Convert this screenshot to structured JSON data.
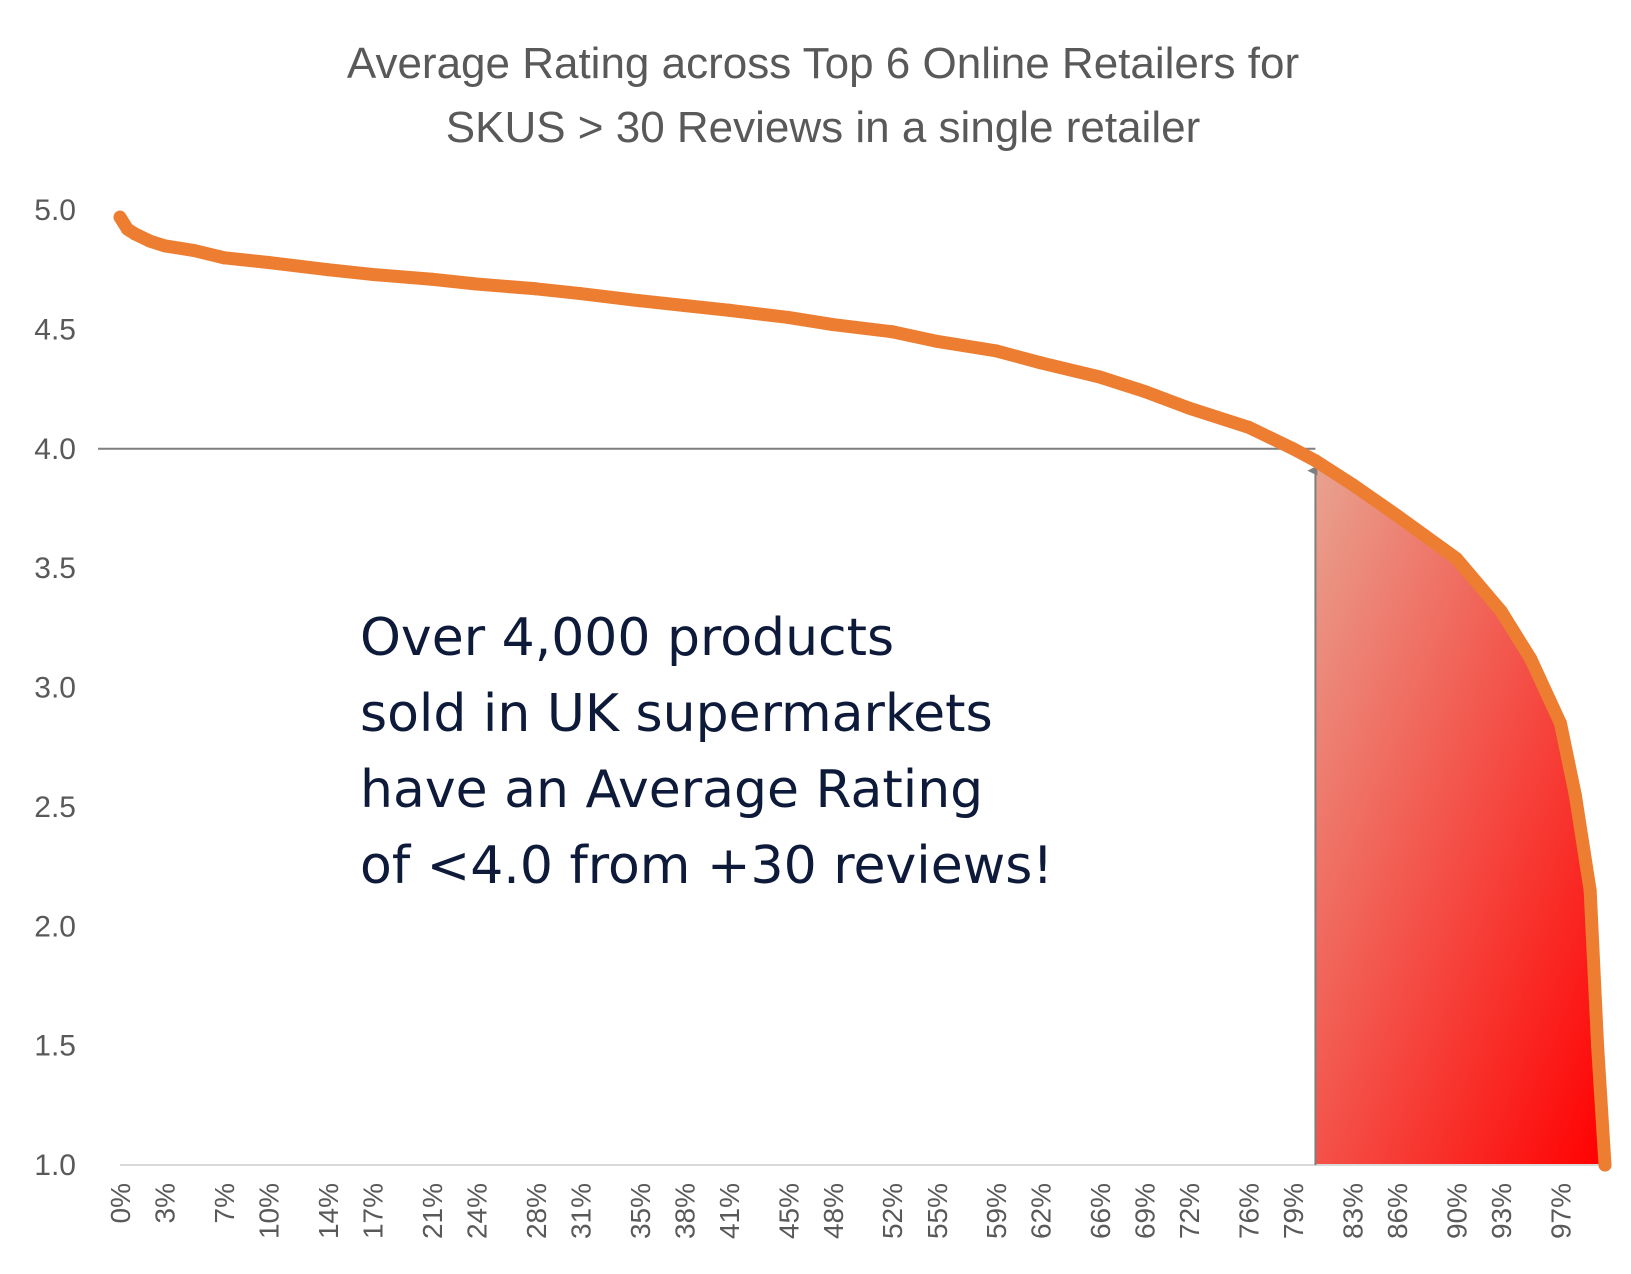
{
  "chart_data": {
    "type": "line",
    "title": [
      "Average Rating across Top 6 Online Retailers for",
      "SKUS > 30 Reviews in a single retailer"
    ],
    "xlabel": "",
    "ylabel": "",
    "ylim": [
      1.0,
      5.0
    ],
    "yticks": [
      "5.0",
      "4.5",
      "4.0",
      "3.5",
      "3.0",
      "2.5",
      "2.0",
      "1.5",
      "1.0"
    ],
    "xticks": [
      "0%",
      "3%",
      "7%",
      "10%",
      "14%",
      "17%",
      "21%",
      "24%",
      "28%",
      "31%",
      "35%",
      "38%",
      "41%",
      "45%",
      "48%",
      "52%",
      "55%",
      "59%",
      "62%",
      "66%",
      "69%",
      "72%",
      "76%",
      "79%",
      "83%",
      "86%",
      "90%",
      "93%",
      "97%"
    ],
    "series": [
      {
        "color": "#ED7D31",
        "x": [
          0,
          0.5,
          1,
          2,
          3,
          5,
          7,
          10,
          14,
          17,
          21,
          24,
          28,
          31,
          35,
          38,
          41,
          45,
          48,
          52,
          55,
          59,
          62,
          66,
          69,
          72,
          76,
          79,
          80.5,
          83,
          86,
          90,
          93,
          95,
          97,
          98,
          99,
          99.5,
          100
        ],
        "values": [
          4.97,
          4.92,
          4.9,
          4.87,
          4.85,
          4.83,
          4.8,
          4.78,
          4.75,
          4.73,
          4.71,
          4.69,
          4.67,
          4.65,
          4.62,
          4.6,
          4.58,
          4.55,
          4.52,
          4.49,
          4.45,
          4.41,
          4.36,
          4.3,
          4.24,
          4.17,
          4.09,
          4.0,
          3.95,
          3.85,
          3.72,
          3.54,
          3.32,
          3.12,
          2.85,
          2.55,
          2.15,
          1.5,
          1.0
        ]
      }
    ],
    "reference_line": {
      "y": 4.0,
      "x_end": 80.5,
      "color": "#7f7f7f"
    },
    "shaded_region": {
      "x_start": 80.5,
      "x_end": 100,
      "colors": [
        "#e8a391",
        "#ff0000"
      ]
    },
    "annotation": {
      "lines": [
        "Over 4,000 products",
        "sold in UK supermarkets",
        "have an Average Rating",
        "of <4.0 from +30 reviews!"
      ],
      "color": "#0e1a3a"
    },
    "grid": false,
    "legend": "none"
  }
}
